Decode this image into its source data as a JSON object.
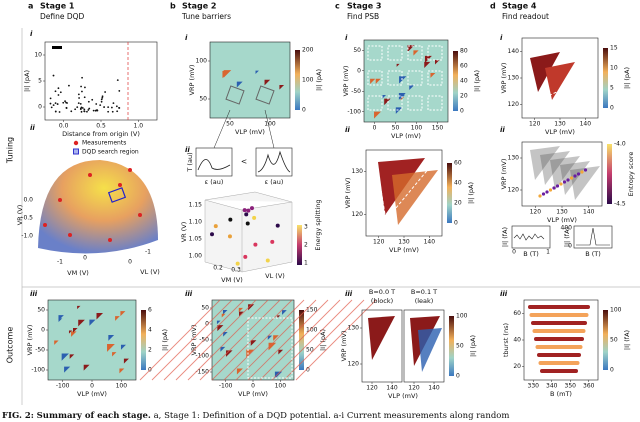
{
  "stages": [
    {
      "letter": "a",
      "title": "Stage 1",
      "subtitle": "Define DQD"
    },
    {
      "letter": "b",
      "title": "Stage 2",
      "subtitle": "Tune barriers"
    },
    {
      "letter": "c",
      "title": "Stage 3",
      "subtitle": "Find PSB"
    },
    {
      "letter": "d",
      "title": "Stage 4",
      "subtitle": "Find readout"
    }
  ],
  "rows": [
    "Tuning",
    "Outcome"
  ],
  "panels": {
    "a_i": {
      "label": "i",
      "xlabel": "Distance from origin (V)",
      "ylabel": "|I| (pA)",
      "xticks": [
        "0.0",
        "0.5",
        "1.0"
      ],
      "yticks": [
        "10",
        "5",
        "0"
      ]
    },
    "a_ii": {
      "label": "ii",
      "legend": [
        "Measurements",
        "DQD search region"
      ],
      "xlabel": "VM (V)",
      "zlabel": "VL (V)",
      "ylabel": "VR (V)",
      "yticks": [
        "0.0",
        "-0.5",
        "-1.0"
      ],
      "xticks": [
        "-1",
        "0"
      ],
      "zticks": [
        "0",
        "-1"
      ]
    },
    "a_iii": {
      "label": "iii",
      "xlabel": "VLP (mV)",
      "ylabel": "VRP (mV)",
      "xticks": [
        "-100",
        "0",
        "100"
      ],
      "yticks": [
        "50",
        "0",
        "-50",
        "-100"
      ],
      "cbar_label": "|I| (pA)",
      "cbar_ticks": [
        "6",
        "4",
        "2",
        "0"
      ]
    },
    "b_i": {
      "label": "i",
      "xlabel": "VLP (mV)",
      "ylabel": "VRP (mV)",
      "xticks": [
        "50",
        "100"
      ],
      "yticks": [
        "100",
        "50"
      ],
      "cbar_label": "|I| (pA)",
      "cbar_ticks": [
        "200",
        "100",
        "0"
      ]
    },
    "b_ii": {
      "label": "ii",
      "inset_ylabel": "T (au)",
      "inset_xlabel": "ε (au)",
      "compare": "<",
      "xlabel": "VM (V)",
      "zlabel": "VL (V)",
      "ylabel": "VR (V)",
      "yticks": [
        "1.15",
        "1.10",
        "1.05",
        "1.00"
      ],
      "xticks": [
        "0.2",
        "0.3"
      ],
      "cbar_label": "Energy splitting",
      "cbar_ticks": [
        "3",
        "2",
        "1"
      ]
    },
    "b_iii": {
      "label": "iii",
      "xlabel": "VLP (mV)",
      "ylabel": "VRP (mV)",
      "xticks": [
        "-100",
        "0",
        "100"
      ],
      "yticks": [
        "50",
        "0",
        "-50",
        "-100",
        "-150"
      ],
      "cbar_label": "|I| (pA)",
      "cbar_ticks": [
        "150",
        "100",
        "50",
        "0"
      ]
    },
    "c_i": {
      "label": "i",
      "xlabel": "VLP (mV)",
      "ylabel": "VRP (mV)",
      "xticks": [
        "0",
        "50",
        "100",
        "150"
      ],
      "yticks": [
        "50",
        "0",
        "-50",
        "-100"
      ],
      "cbar_label": "|I| (pA)",
      "cbar_ticks": [
        "80",
        "60",
        "40",
        "20",
        "0"
      ]
    },
    "c_ii": {
      "label": "ii",
      "xlabel": "VLP (mV)",
      "ylabel": "VRP (mV)",
      "xticks": [
        "120",
        "130",
        "140"
      ],
      "yticks": [
        "130",
        "120"
      ],
      "cbar_label": "|I| (pA)",
      "cbar_ticks": [
        "60",
        "40",
        "20",
        "0"
      ]
    },
    "c_iii": {
      "label": "iii",
      "titles": [
        "B=0.0 T",
        "(block)",
        "B=0.1 T",
        "(leak)"
      ],
      "xlabel": "VLP (mV)",
      "ylabel": "VRP (mV)",
      "xticks": [
        "120",
        "140",
        "120",
        "140"
      ],
      "yticks": [
        "130",
        "120"
      ],
      "cbar_label": "|I| (pA)",
      "cbar_ticks": [
        "100",
        "50",
        "0"
      ]
    },
    "d_i": {
      "label": "i",
      "xlabel": "VLP (mV)",
      "ylabel": "VRP (mV)",
      "xticks": [
        "120",
        "130",
        "140"
      ],
      "yticks": [
        "140",
        "130",
        "120"
      ],
      "cbar_label": "|I| (pA)",
      "cbar_ticks": [
        "15",
        "10",
        "5",
        "0"
      ]
    },
    "d_ii": {
      "label": "ii",
      "xlabel": "VLP (mV)",
      "ylabel": "VRP (mV)",
      "xticks": [
        "120",
        "130",
        "140"
      ],
      "yticks": [
        "130",
        "120"
      ],
      "cbar_label": "Entropy score",
      "cbar_ticks": [
        "-4.0",
        "-4.5"
      ],
      "inset_ylabel": "|I| (fA)",
      "inset_xlabel": "B (T)",
      "inset_ticks": [
        "0",
        "1",
        "0",
        "400"
      ]
    },
    "d_iii": {
      "label": "iii",
      "xlabel": "B (mT)",
      "ylabel": "tburst (ns)",
      "xticks": [
        "330",
        "340",
        "350",
        "360"
      ],
      "yticks": [
        "60",
        "40",
        "20"
      ],
      "cbar_label": "|I| (fA)",
      "cbar_ticks": [
        "100",
        "50",
        "0"
      ]
    }
  },
  "caption": {
    "label": "FIG. 2:",
    "title": "Summary of each stage.",
    "text": "a, Stage 1: Definition of a DQD potential. a-i Current measurements along random"
  }
}
